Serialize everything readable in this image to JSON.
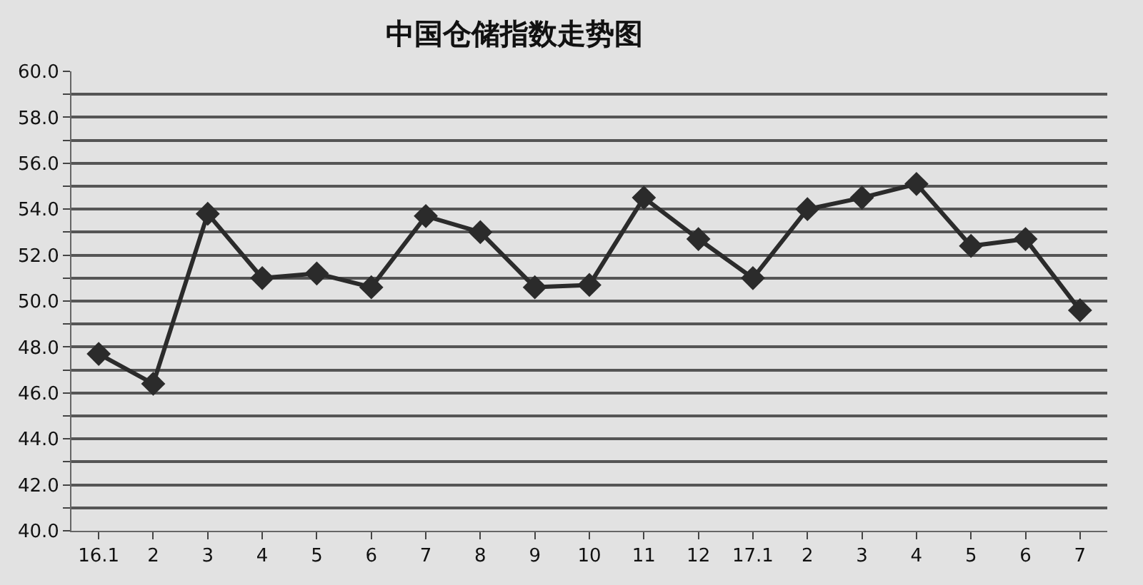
{
  "chart_data": {
    "type": "line",
    "title": "中国仓储指数走势图",
    "categories": [
      "16.1",
      "2",
      "3",
      "4",
      "5",
      "6",
      "7",
      "8",
      "9",
      "10",
      "11",
      "12",
      "17.1",
      "2",
      "3",
      "4",
      "5",
      "6",
      "7"
    ],
    "series": [
      {
        "color": "#2b2b2b",
        "values": [
          47.7,
          46.4,
          53.8,
          51.0,
          51.2,
          50.6,
          53.7,
          53.0,
          50.6,
          50.7,
          54.5,
          52.7,
          51.0,
          54.0,
          54.5,
          55.1,
          52.4,
          52.7,
          49.6
        ]
      }
    ],
    "ylim": [
      40,
      60
    ],
    "yticks": [
      {
        "value": 40,
        "label": "40.0"
      },
      {
        "value": 41,
        "label": null
      },
      {
        "value": 42,
        "label": "42.0"
      },
      {
        "value": 43,
        "label": null
      },
      {
        "value": 44,
        "label": "44.0"
      },
      {
        "value": 45,
        "label": null
      },
      {
        "value": 46,
        "label": "46.0"
      },
      {
        "value": 47,
        "label": null
      },
      {
        "value": 48,
        "label": "48.0"
      },
      {
        "value": 49,
        "label": null
      },
      {
        "value": 50,
        "label": "50.0"
      },
      {
        "value": 51,
        "label": null
      },
      {
        "value": 52,
        "label": "52.0"
      },
      {
        "value": 53,
        "label": null
      },
      {
        "value": 54,
        "label": "54.0"
      },
      {
        "value": 55,
        "label": null
      },
      {
        "value": 56,
        "label": "56.0"
      },
      {
        "value": 57,
        "label": null
      },
      {
        "value": 58,
        "label": "58.0"
      },
      {
        "value": 59,
        "label": null
      },
      {
        "value": 60,
        "label": "60.0"
      }
    ],
    "grid": "y",
    "marker": "diamond",
    "line_style": "solid"
  }
}
